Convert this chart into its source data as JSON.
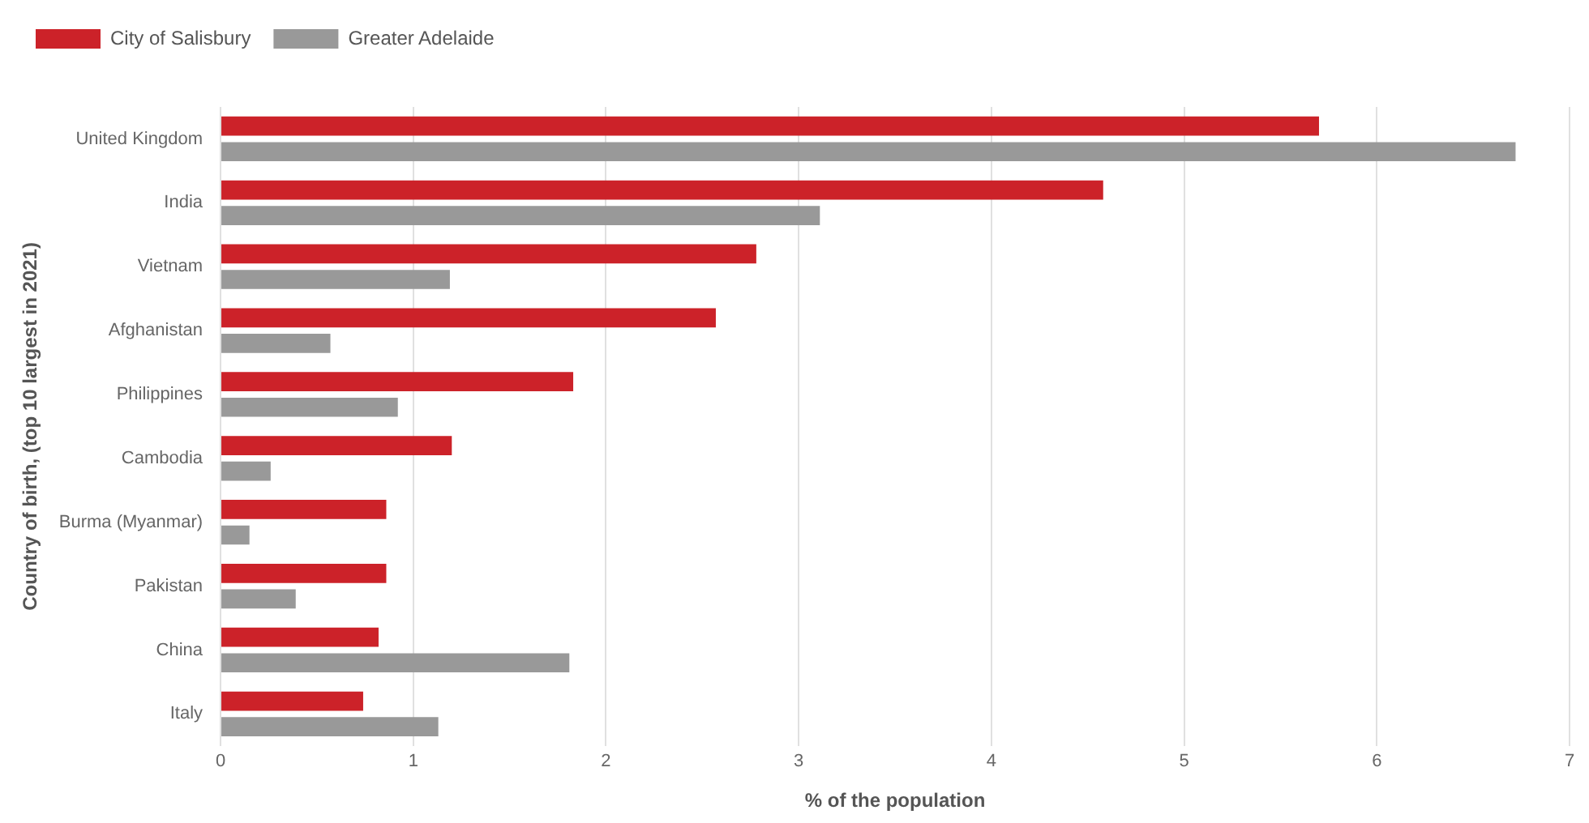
{
  "chart_data": {
    "type": "bar",
    "orientation": "horizontal",
    "xlabel": "% of the population",
    "ylabel": "Country of birth, (top 10 largest in 2021)",
    "categories": [
      "United Kingdom",
      "India",
      "Vietnam",
      "Afghanistan",
      "Philippines",
      "Cambodia",
      "Burma (Myanmar)",
      "Pakistan",
      "China",
      "Italy"
    ],
    "series": [
      {
        "name": "City of Salisbury",
        "color": "#cc2229",
        "values": [
          5.7,
          4.58,
          2.78,
          2.57,
          1.83,
          1.2,
          0.86,
          0.86,
          0.82,
          0.74
        ]
      },
      {
        "name": "Greater Adelaide",
        "color": "#999999",
        "values": [
          6.72,
          3.11,
          1.19,
          0.57,
          0.92,
          0.26,
          0.15,
          0.39,
          1.81,
          1.13
        ]
      }
    ],
    "xlim": [
      0,
      7
    ],
    "xticks": [
      0,
      1,
      2,
      3,
      4,
      5,
      6,
      7
    ],
    "grid": "x",
    "legend": "top left"
  }
}
